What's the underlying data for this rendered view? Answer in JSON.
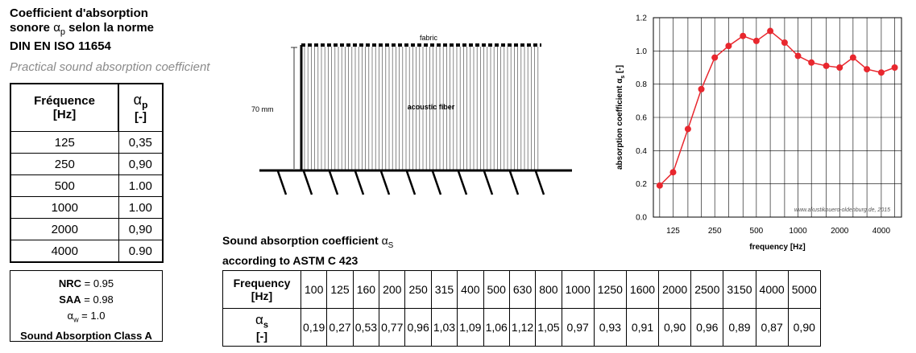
{
  "left": {
    "title_line1": "Coefficient d'absorption",
    "title_line2_pre": "sonore ",
    "title_alpha": "α",
    "title_sub": "p",
    "title_line2_post": " selon la norme",
    "title_line3": "DIN EN ISO 11654",
    "subtitle": "Practical sound absorption coefficient",
    "table_header_freq": "Fréquence",
    "table_header_freq_unit": "[Hz]",
    "table_header_alpha": "α",
    "table_header_alpha_sub": "p",
    "table_header_alpha_unit": "[-]",
    "rows": [
      {
        "freq": "125",
        "value": "0,35"
      },
      {
        "freq": "250",
        "value": "0,90"
      },
      {
        "freq": "500",
        "value": "1.00"
      },
      {
        "freq": "1000",
        "value": "1.00"
      },
      {
        "freq": "2000",
        "value": "0,90"
      },
      {
        "freq": "4000",
        "value": "0.90"
      }
    ]
  },
  "summary": {
    "nrc_label": "NRC",
    "nrc_value": " = 0.95",
    "saa_label": "SAA",
    "saa_value": " = 0.98",
    "aw_alpha": "α",
    "aw_sub": "w",
    "aw_value": " = 1.0",
    "class_text": "Sound Absorption Class A"
  },
  "diagram": {
    "top_label": "fabric",
    "inner_label": "acoustic fiber",
    "dimension_label": "70 mm"
  },
  "astm": {
    "title_line1_pre": "Sound absorption coefficient ",
    "title_alpha": "α",
    "title_sub": "S",
    "title_line2": "according to ASTM C 423",
    "freq_header": "Frequency",
    "freq_unit": "[Hz]",
    "alpha_header": "α",
    "alpha_sub": "s",
    "alpha_unit": "[-]",
    "frequencies": [
      "100",
      "125",
      "160",
      "200",
      "250",
      "315",
      "400",
      "500",
      "630",
      "800",
      "1000",
      "1250",
      "1600",
      "2000",
      "2500",
      "3150",
      "4000",
      "5000"
    ],
    "values": [
      "0,19",
      "0,27",
      "0,53",
      "0,77",
      "0,96",
      "1,03",
      "1,09",
      "1,06",
      "1,12",
      "1,05",
      "0,97",
      "0,93",
      "0,91",
      "0,90",
      "0,96",
      "0,89",
      "0,87",
      "0,90"
    ]
  },
  "chart_data": {
    "type": "line",
    "x": [
      100,
      125,
      160,
      200,
      250,
      315,
      400,
      500,
      630,
      800,
      1000,
      1250,
      1600,
      2000,
      2500,
      3150,
      4000,
      5000
    ],
    "series": [
      {
        "values": [
          0.19,
          0.27,
          0.53,
          0.77,
          0.96,
          1.03,
          1.09,
          1.06,
          1.12,
          1.05,
          0.97,
          0.93,
          0.91,
          0.9,
          0.96,
          0.89,
          0.87,
          0.9
        ]
      }
    ],
    "xlabel": "frequency [Hz]",
    "ylabel": "absorption coefficient α",
    "ylabel_sub": "s",
    "ylabel_unit": " [-]",
    "xscale": "log",
    "xticks": [
      "125",
      "250",
      "500",
      "1000",
      "2000",
      "4000"
    ],
    "ylim": [
      0,
      1.2
    ],
    "yticks": [
      "0.0",
      "0.2",
      "0.4",
      "0.6",
      "0.8",
      "1.0",
      "1.2"
    ],
    "grid": true,
    "line_color": "#e8272e",
    "watermark": "www.akustikbuero-oldenburg.de, 2015"
  }
}
